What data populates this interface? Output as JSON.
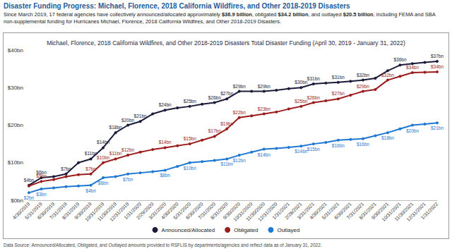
{
  "page_title": "Disaster Funding Progress: Michael, Florence, 2018 California Wildfires, and Other 2018-2019 Disasters",
  "page_text": "Since March 2019, 17 federal agencies have collectively announced/allocated approximately $36.9 billion, obligated $34.2 billion, and outlayed $20.5 billion, including FEMA and SBA non-supplemental funding for Hurricanes Michael, Florence, 2018 California Wildfires, and Other 2018-2019 Disasters.",
  "source": "Data Source: Announced/Allocated, Obligated, and Outlayed amounts provided to RSFLIS by departments/agencies and reflect data as of January 31, 2022.",
  "chart_data": {
    "type": "line",
    "title": "Michael, Florence, 2018 California Wildfires, and Other 2018-2019 Disasters Total Disaster Funding (April 30, 2019 - January 31, 2022)",
    "categories": [
      "4/30/2019",
      "5/31/2019",
      "6/30/2019",
      "7/31/2019",
      "8/31/2019",
      "9/30/2019",
      "10/31/2019",
      "11/30/2019",
      "12/31/2019",
      "1/31/2020",
      "2/29/2020",
      "3/31/2020",
      "4/30/2020",
      "5/31/2020",
      "6/30/2020",
      "7/31/2020",
      "8/31/2020",
      "9/30/2020",
      "10/31/2020",
      "11/30/2020",
      "12/31/2020",
      "1/31/2021",
      "2/28/2021",
      "3/31/2021",
      "4/30/2021",
      "5/31/2021",
      "6/30/2021",
      "7/31/2021",
      "8/31/2021",
      "9/30/2021",
      "10/31/2021",
      "11/30/2021",
      "12/31/2021",
      "1/31/2022"
    ],
    "series": [
      {
        "name": "Announced/Allocated",
        "color": "#1b1b3a",
        "values": [
          4,
          6,
          6.3,
          7,
          10,
          11,
          14,
          18,
          20,
          21,
          23,
          24,
          24.6,
          25,
          25.6,
          26,
          27,
          29,
          29,
          29,
          29.3,
          29.7,
          30,
          31,
          31.2,
          31.4,
          31.7,
          32,
          32.5,
          34.5,
          36,
          36.4,
          36.7,
          37
        ],
        "value_labels": [
          "$4bn",
          "$6bn",
          null,
          "$7bn",
          null,
          "$11bn",
          "$14bn",
          "$18bn",
          "$20bn",
          "$21bn",
          null,
          "$24bn",
          null,
          "$25bn",
          null,
          "$26bn",
          "$27bn",
          "$29bn",
          null,
          "$29bn",
          null,
          null,
          "$30bn",
          "$31bn",
          null,
          "$31bn",
          null,
          "$32bn",
          null,
          null,
          "$36bn",
          null,
          null,
          "$37bn"
        ]
      },
      {
        "name": "Obligated",
        "color": "#9b1c1c",
        "values": [
          3.8,
          5,
          5.5,
          6.3,
          6.8,
          7,
          10,
          11,
          12,
          12.8,
          13.5,
          14,
          14.5,
          15,
          16,
          17,
          19,
          22,
          22.5,
          23,
          23.5,
          24.3,
          25,
          26,
          26.5,
          27,
          28,
          29,
          29.5,
          32,
          33,
          34,
          34.1,
          34.2
        ],
        "value_labels": [
          null,
          "$5bn",
          null,
          null,
          null,
          "$7bn",
          "$10bn",
          "$11bn",
          "$12bn",
          null,
          null,
          "$14bn",
          null,
          "$15bn",
          null,
          "$17bn",
          "$19bn",
          "$22bn",
          null,
          "$23bn",
          null,
          null,
          "$25bn",
          "$26bn",
          null,
          "$27bn",
          null,
          "$29bn",
          null,
          "$32bn",
          null,
          "$34bn",
          null,
          "$34bn"
        ]
      },
      {
        "name": "Outlayed",
        "color": "#1f78d1",
        "values": [
          2,
          3,
          3.3,
          3.6,
          3.8,
          4,
          6,
          6.3,
          7,
          7.3,
          7.6,
          8,
          9,
          10,
          10.3,
          10.6,
          11,
          12,
          12.8,
          13.6,
          13.8,
          14.1,
          14.4,
          15,
          15.4,
          16,
          16.2,
          16.4,
          17.2,
          18,
          19,
          20,
          20.3,
          20.6
        ],
        "value_labels": [
          "$2bn",
          "$3bn",
          null,
          null,
          null,
          "$4bn",
          "$6bn",
          null,
          "$7bn",
          null,
          null,
          "$8bn",
          null,
          "$10bn",
          null,
          null,
          "$11bn",
          "$12bn",
          null,
          "$14bn",
          null,
          null,
          "$14bn",
          "$15bn",
          null,
          "$16bn",
          null,
          "$16bn",
          null,
          "$18bn",
          null,
          "$20bn",
          null,
          "$21bn"
        ]
      }
    ],
    "ylim": [
      0,
      40
    ],
    "yticks": [
      {
        "value": 0,
        "label": "$0bn"
      },
      {
        "value": 10,
        "label": "$10bn"
      },
      {
        "value": 20,
        "label": "$20bn"
      },
      {
        "value": 30,
        "label": "$30bn"
      },
      {
        "value": 40,
        "label": "$40bn"
      }
    ],
    "grid": false,
    "legend": "bottom",
    "data_labels": true,
    "marker": "circle"
  }
}
